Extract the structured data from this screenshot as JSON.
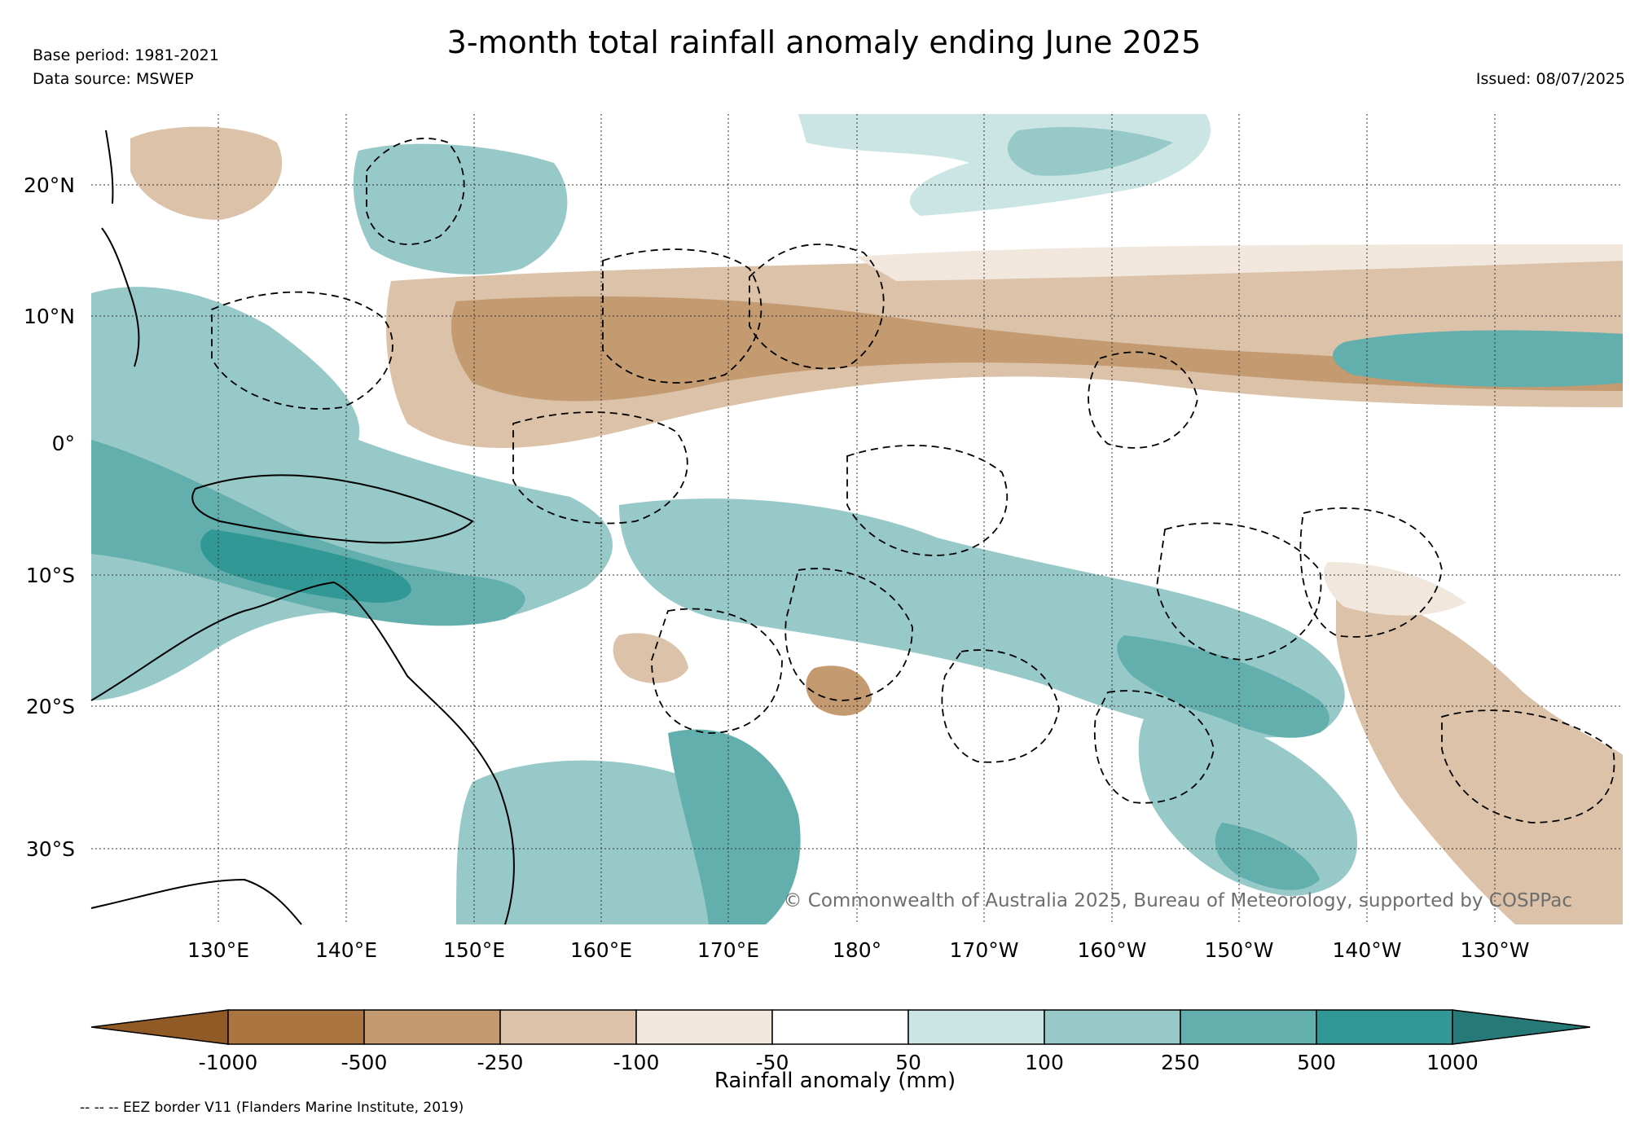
{
  "header": {
    "title": "3-month total rainfall anomaly ending June 2025",
    "base_period": "Base period: 1981-2021",
    "data_source": "Data source: MSWEP",
    "issued": "Issued: 08/07/2025"
  },
  "map": {
    "latitude_labels": [
      "20°N",
      "10°N",
      "0°",
      "10°S",
      "20°S",
      "30°S"
    ],
    "longitude_labels": [
      "130°E",
      "140°E",
      "150°E",
      "160°E",
      "170°E",
      "180°",
      "170°W",
      "160°W",
      "150°W",
      "140°W",
      "130°W"
    ],
    "copyright": "© Commonwealth of Australia 2025, Bureau of Meteorology, supported by COSPPac"
  },
  "colorbar": {
    "label": "Rainfall anomaly (mm)",
    "tick_labels": [
      "-1000",
      "-500",
      "-250",
      "-100",
      "-50",
      "50",
      "100",
      "250",
      "500",
      "1000"
    ],
    "colors": [
      "#8f5a26",
      "#ac7440",
      "#c49a70",
      "#dbc2a8",
      "#f2e7dd",
      "#ffffff",
      "#cbe5e4",
      "#97c9c8",
      "#63afae",
      "#319896",
      "#267976"
    ]
  },
  "footnote": "-- -- -- EEZ border V11 (Flanders Marine Institute, 2019)"
}
